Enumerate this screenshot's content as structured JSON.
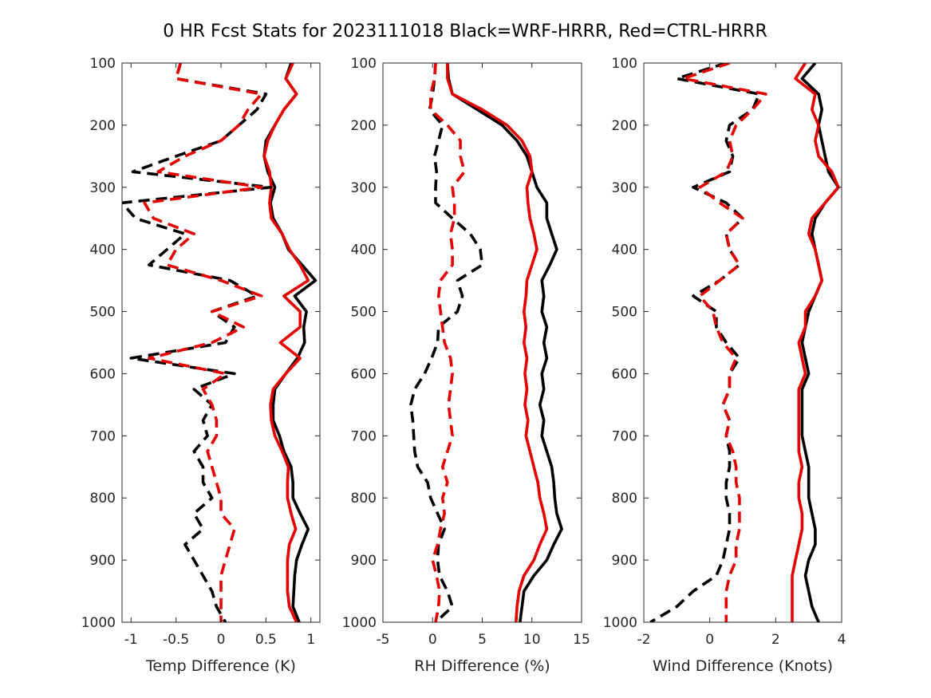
{
  "title": "0 HR Fcst Stats for 2023111018 Black=WRF-HRRR, Red=CTRL-HRRR",
  "colors": {
    "black": "#000000",
    "red": "#e60000",
    "axis": "#262626"
  },
  "chart_data": [
    {
      "type": "line",
      "xlabel": "Temp Difference (K)",
      "ylabel": "",
      "xlim": [
        -1.1,
        1.1
      ],
      "ylim": [
        1000,
        100
      ],
      "y_reversed": true,
      "xticks": [
        -1,
        -0.5,
        0,
        0.5,
        1
      ],
      "xtick_labels": [
        "-1",
        "-0.5",
        "0",
        "0.5",
        "1"
      ],
      "yticks": [
        100,
        200,
        300,
        400,
        500,
        600,
        700,
        800,
        900,
        1000
      ],
      "ytick_labels": [
        "100",
        "200",
        "300",
        "400",
        "500",
        "600",
        "700",
        "800",
        "900",
        "1000"
      ],
      "grid": false,
      "levels": [
        100,
        125,
        150,
        175,
        200,
        225,
        250,
        275,
        300,
        325,
        350,
        375,
        400,
        425,
        450,
        475,
        500,
        525,
        550,
        575,
        600,
        625,
        650,
        675,
        700,
        725,
        750,
        775,
        800,
        825,
        850,
        875,
        900,
        925,
        950,
        975,
        1000
      ],
      "series": [
        {
          "color": "black",
          "dash": "solid",
          "values": [
            0.78,
            0.72,
            0.84,
            0.7,
            0.6,
            0.5,
            0.48,
            0.52,
            0.6,
            0.55,
            0.58,
            0.68,
            0.75,
            0.9,
            1.05,
            0.82,
            0.95,
            0.92,
            0.93,
            0.85,
            0.72,
            0.6,
            0.58,
            0.58,
            0.65,
            0.7,
            0.78,
            0.8,
            0.8,
            0.88,
            0.97,
            0.9,
            0.84,
            0.82,
            0.81,
            0.8,
            0.87
          ]
        },
        {
          "color": "red",
          "dash": "solid",
          "values": [
            0.8,
            0.72,
            0.84,
            0.7,
            0.6,
            0.52,
            0.48,
            0.54,
            0.56,
            0.54,
            0.56,
            0.68,
            0.76,
            0.88,
            0.97,
            0.7,
            0.88,
            0.88,
            0.66,
            0.88,
            0.72,
            0.58,
            0.55,
            0.56,
            0.6,
            0.68,
            0.75,
            0.74,
            0.74,
            0.78,
            0.83,
            0.76,
            0.74,
            0.74,
            0.74,
            0.76,
            0.84
          ]
        },
        {
          "color": "black",
          "dash": "dashed",
          "values": [
            -0.45,
            -0.5,
            0.5,
            0.4,
            0.2,
            0.0,
            -0.5,
            -0.98,
            0.55,
            -1.1,
            -0.95,
            -0.4,
            -0.6,
            -0.8,
            0.1,
            0.4,
            -0.1,
            0.15,
            0.05,
            -1.0,
            0.15,
            -0.3,
            -0.1,
            -0.2,
            -0.15,
            -0.3,
            -0.2,
            -0.2,
            -0.1,
            -0.3,
            -0.2,
            -0.4,
            -0.3,
            -0.2,
            -0.1,
            -0.05,
            0.05
          ]
        },
        {
          "color": "red",
          "dash": "dashed",
          "values": [
            -0.45,
            -0.5,
            0.45,
            0.3,
            0.2,
            0.0,
            -0.4,
            -0.7,
            0.45,
            -0.85,
            -0.75,
            -0.3,
            -0.5,
            -0.6,
            0.0,
            0.45,
            -0.1,
            0.25,
            -0.1,
            -0.8,
            0.05,
            -0.2,
            -0.1,
            -0.05,
            -0.05,
            -0.15,
            -0.1,
            -0.05,
            0.0,
            0.0,
            0.15,
            0.1,
            0.05,
            0.0,
            0.0,
            0.0,
            0.0
          ]
        }
      ]
    },
    {
      "type": "line",
      "xlabel": "RH Difference (%)",
      "ylabel": "",
      "xlim": [
        -5,
        15
      ],
      "ylim": [
        1000,
        100
      ],
      "y_reversed": true,
      "xticks": [
        -5,
        0,
        5,
        10,
        15
      ],
      "xtick_labels": [
        "-5",
        "0",
        "5",
        "10",
        "15"
      ],
      "yticks": [
        100,
        200,
        300,
        400,
        500,
        600,
        700,
        800,
        900,
        1000
      ],
      "ytick_labels": [
        "100",
        "200",
        "300",
        "400",
        "500",
        "600",
        "700",
        "800",
        "900",
        "1000"
      ],
      "grid": false,
      "levels": [
        100,
        125,
        150,
        175,
        200,
        225,
        250,
        275,
        300,
        325,
        350,
        375,
        400,
        425,
        450,
        475,
        500,
        525,
        550,
        575,
        600,
        625,
        650,
        675,
        700,
        725,
        750,
        775,
        800,
        825,
        850,
        875,
        900,
        925,
        950,
        975,
        1000
      ],
      "series": [
        {
          "color": "black",
          "dash": "solid",
          "values": [
            1.5,
            1.6,
            2.0,
            4.5,
            7.0,
            8.5,
            9.5,
            10.0,
            10.5,
            11.5,
            11.5,
            12.0,
            12.5,
            11.8,
            11.0,
            11.2,
            11.0,
            11.5,
            11.2,
            11.5,
            11.0,
            11.2,
            10.8,
            11.2,
            11.0,
            11.5,
            12.0,
            12.2,
            12.3,
            12.5,
            13.0,
            12.2,
            11.5,
            10.2,
            9.2,
            9.0,
            8.8
          ]
        },
        {
          "color": "red",
          "dash": "solid",
          "values": [
            1.5,
            1.5,
            2.0,
            5.0,
            7.5,
            9.0,
            9.8,
            10.0,
            9.5,
            9.6,
            9.8,
            10.2,
            10.5,
            10.0,
            9.5,
            9.4,
            9.2,
            9.4,
            9.2,
            9.5,
            9.3,
            9.5,
            9.3,
            9.6,
            9.4,
            9.8,
            10.2,
            10.6,
            10.8,
            11.2,
            11.5,
            10.8,
            10.2,
            9.2,
            8.7,
            8.5,
            8.4
          ]
        },
        {
          "color": "black",
          "dash": "dashed",
          "values": [
            0.3,
            0.2,
            0.0,
            -0.3,
            1.0,
            0.6,
            0.2,
            0.4,
            0.3,
            0.3,
            2.0,
            3.8,
            4.8,
            5.0,
            2.5,
            3.0,
            2.5,
            0.6,
            0.5,
            -0.1,
            -0.8,
            -1.8,
            -2.2,
            -2.0,
            -1.9,
            -1.8,
            -1.5,
            -0.5,
            -0.2,
            0.5,
            1.2,
            0.6,
            0.5,
            0.7,
            1.5,
            2.0,
            0.3
          ]
        },
        {
          "color": "red",
          "dash": "dashed",
          "values": [
            0.3,
            0.2,
            -0.2,
            -0.2,
            1.5,
            2.8,
            2.8,
            3.2,
            2.0,
            2.2,
            2.2,
            1.8,
            2.0,
            2.0,
            0.8,
            0.6,
            0.8,
            1.0,
            1.2,
            1.8,
            2.0,
            1.8,
            1.6,
            1.8,
            2.0,
            1.5,
            1.0,
            1.5,
            1.0,
            1.2,
            0.8,
            0.5,
            0.0,
            0.4,
            0.7,
            0.6,
            0.3
          ]
        }
      ]
    },
    {
      "type": "line",
      "xlabel": "Wind Difference (Knots)",
      "ylabel": "",
      "xlim": [
        -2,
        4
      ],
      "ylim": [
        1000,
        100
      ],
      "y_reversed": true,
      "xticks": [
        -2,
        0,
        2,
        4
      ],
      "xtick_labels": [
        "-2",
        "0",
        "2",
        "4"
      ],
      "yticks": [
        100,
        200,
        300,
        400,
        500,
        600,
        700,
        800,
        900,
        1000
      ],
      "ytick_labels": [
        "100",
        "200",
        "300",
        "400",
        "500",
        "600",
        "700",
        "800",
        "900",
        "1000"
      ],
      "grid": false,
      "levels": [
        100,
        125,
        150,
        175,
        200,
        225,
        250,
        275,
        300,
        325,
        350,
        375,
        400,
        425,
        450,
        475,
        500,
        525,
        550,
        575,
        600,
        625,
        650,
        675,
        700,
        725,
        750,
        775,
        800,
        825,
        850,
        875,
        900,
        925,
        950,
        975,
        1000
      ],
      "series": [
        {
          "color": "black",
          "dash": "solid",
          "values": [
            3.2,
            2.8,
            3.3,
            3.4,
            3.3,
            3.4,
            3.5,
            3.6,
            3.9,
            3.5,
            3.2,
            3.1,
            3.2,
            3.3,
            3.4,
            3.2,
            3.0,
            2.9,
            2.8,
            2.9,
            3.0,
            2.8,
            2.8,
            2.8,
            2.8,
            2.9,
            3.0,
            3.0,
            3.0,
            3.1,
            3.2,
            3.2,
            3.0,
            2.9,
            3.0,
            3.1,
            3.3
          ]
        },
        {
          "color": "red",
          "dash": "solid",
          "values": [
            2.9,
            2.6,
            3.2,
            3.1,
            3.3,
            3.2,
            3.3,
            3.7,
            3.9,
            3.5,
            3.1,
            3.0,
            3.2,
            3.3,
            3.4,
            3.2,
            2.9,
            2.9,
            2.7,
            2.8,
            2.9,
            2.7,
            2.7,
            2.7,
            2.7,
            2.7,
            2.8,
            2.7,
            2.7,
            2.8,
            2.8,
            2.7,
            2.6,
            2.5,
            2.5,
            2.5,
            2.5
          ]
        },
        {
          "color": "black",
          "dash": "dashed",
          "values": [
            0.5,
            -1.0,
            1.5,
            1.3,
            0.6,
            0.5,
            0.7,
            0.6,
            -0.5,
            0.5,
            1.0,
            0.5,
            0.6,
            0.9,
            0.3,
            -0.5,
            0.2,
            0.2,
            0.5,
            0.9,
            0.6,
            0.6,
            0.4,
            0.6,
            0.5,
            0.6,
            0.6,
            0.5,
            0.5,
            0.6,
            0.6,
            0.5,
            0.4,
            0.2,
            -0.5,
            -1.0,
            -1.8
          ]
        },
        {
          "color": "red",
          "dash": "dashed",
          "values": [
            0.6,
            -0.8,
            1.7,
            1.3,
            0.8,
            0.6,
            0.7,
            0.5,
            -0.3,
            0.3,
            1.0,
            0.5,
            0.6,
            0.9,
            0.3,
            -0.3,
            0.1,
            0.2,
            0.4,
            0.8,
            0.6,
            0.6,
            0.4,
            0.6,
            0.5,
            0.7,
            0.8,
            0.8,
            0.9,
            0.9,
            0.9,
            0.8,
            0.8,
            0.6,
            0.5,
            0.5,
            0.5
          ]
        }
      ]
    }
  ]
}
